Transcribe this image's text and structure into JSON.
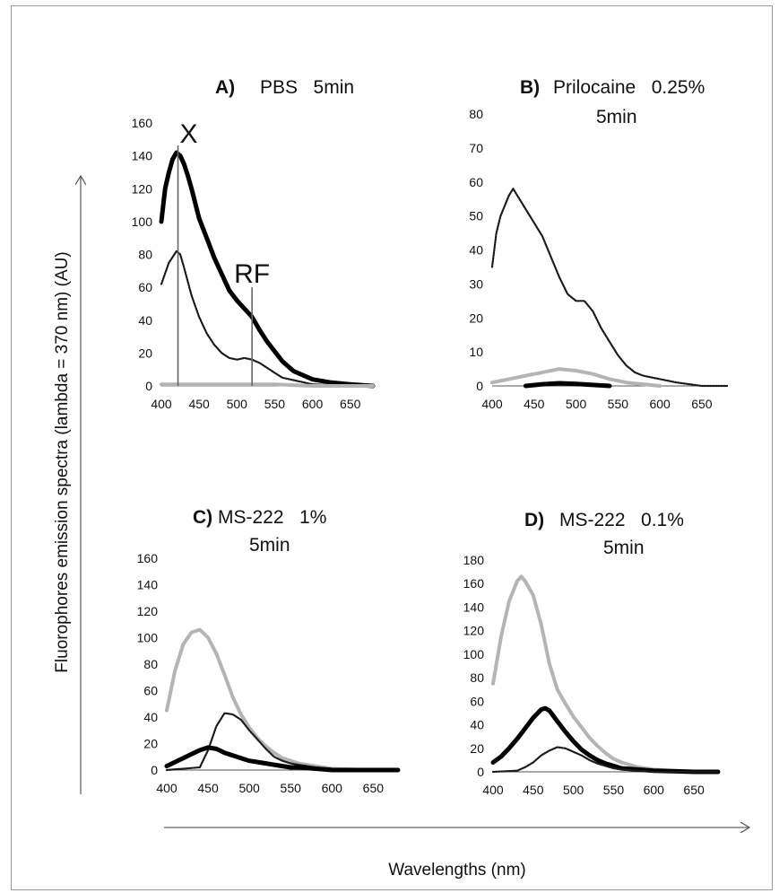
{
  "figure": {
    "ylabel": "Fluorophores  emission  spectra  (lambda = 370 nm)  (AU)",
    "xlabel": "Wavelengths   (nm)",
    "colors": {
      "black_series": "#000000",
      "dotted_series": "#1a1a1a",
      "gray_series": "#b4b4b4"
    }
  },
  "chart_data": [
    {
      "type": "line",
      "panel_label": "A)",
      "title_lines": [
        "PBS   5min"
      ],
      "xlim": [
        400,
        680
      ],
      "ylim": [
        0,
        160
      ],
      "xticks": [
        "400",
        "450",
        "500",
        "550",
        "600",
        "650"
      ],
      "yticks": [
        "0",
        "20",
        "40",
        "60",
        "80",
        "100",
        "120",
        "140",
        "160"
      ],
      "annotations": [
        {
          "text": "X",
          "x": 422
        },
        {
          "text": "RF",
          "x": 520
        }
      ],
      "series": [
        {
          "style": "thick-black",
          "x": [
            400,
            405,
            410,
            415,
            420,
            425,
            430,
            435,
            440,
            450,
            460,
            470,
            480,
            490,
            500,
            510,
            520,
            530,
            540,
            550,
            560,
            575,
            600,
            625,
            650,
            680
          ],
          "y": [
            100,
            120,
            130,
            138,
            142,
            140,
            135,
            128,
            120,
            102,
            90,
            78,
            68,
            58,
            52,
            47,
            42,
            34,
            27,
            21,
            15,
            9,
            4,
            2,
            1,
            0
          ]
        },
        {
          "style": "dotted-black",
          "x": [
            400,
            410,
            420,
            425,
            430,
            440,
            450,
            460,
            470,
            480,
            490,
            500,
            510,
            520,
            530,
            540,
            550,
            560,
            580,
            600,
            650,
            680
          ],
          "y": [
            62,
            75,
            82,
            80,
            72,
            55,
            42,
            32,
            25,
            20,
            17,
            16,
            17,
            16,
            14,
            11,
            8,
            5,
            3,
            1,
            0,
            0
          ]
        },
        {
          "style": "gray",
          "x": [
            400,
            450,
            500,
            550,
            600,
            680
          ],
          "y": [
            1,
            1,
            1,
            1,
            0,
            0
          ]
        }
      ]
    },
    {
      "type": "line",
      "panel_label": "B)",
      "title_lines": [
        "Prilocaine   0.25%",
        "5min"
      ],
      "xlim": [
        400,
        680
      ],
      "ylim": [
        0,
        80
      ],
      "xticks": [
        "400",
        "450",
        "500",
        "550",
        "600",
        "650"
      ],
      "yticks": [
        "0",
        "10",
        "20",
        "30",
        "40",
        "50",
        "60",
        "70",
        "80"
      ],
      "series": [
        {
          "style": "dotted-black",
          "x": [
            400,
            405,
            410,
            420,
            425,
            430,
            440,
            450,
            460,
            470,
            480,
            490,
            500,
            510,
            520,
            530,
            540,
            550,
            560,
            570,
            580,
            600,
            620,
            650,
            680
          ],
          "y": [
            35,
            45,
            50,
            56,
            58,
            56,
            52,
            48,
            44,
            38,
            32,
            27,
            25,
            25,
            22,
            17,
            13,
            9,
            6,
            4,
            3,
            2,
            1,
            0,
            0
          ]
        },
        {
          "style": "gray",
          "x": [
            400,
            420,
            440,
            460,
            480,
            500,
            520,
            540,
            560,
            600
          ],
          "y": [
            1,
            2,
            3,
            4,
            5,
            4.5,
            3.5,
            2,
            1,
            0
          ]
        },
        {
          "style": "thick-black",
          "x": [
            440,
            460,
            480,
            500,
            520,
            540
          ],
          "y": [
            0,
            0.5,
            0.8,
            0.6,
            0.3,
            0
          ]
        }
      ]
    },
    {
      "type": "line",
      "panel_label": "C)",
      "title_lines": [
        "MS-222   1%",
        "5min"
      ],
      "xlim": [
        400,
        680
      ],
      "ylim": [
        0,
        160
      ],
      "xticks": [
        "400",
        "450",
        "500",
        "550",
        "600",
        "650"
      ],
      "yticks": [
        "0",
        "20",
        "40",
        "60",
        "80",
        "100",
        "120",
        "140",
        "160"
      ],
      "series": [
        {
          "style": "gray",
          "x": [
            400,
            410,
            420,
            430,
            440,
            450,
            460,
            470,
            480,
            490,
            500,
            510,
            520,
            530,
            540,
            550,
            560,
            580,
            600,
            650,
            680
          ],
          "y": [
            45,
            75,
            95,
            104,
            106,
            100,
            88,
            72,
            55,
            42,
            32,
            24,
            18,
            13,
            9,
            7,
            5,
            3,
            1,
            0,
            0
          ]
        },
        {
          "style": "dotted-black",
          "x": [
            400,
            440,
            450,
            460,
            470,
            480,
            490,
            500,
            510,
            520,
            530,
            540,
            550,
            560,
            580,
            600,
            650,
            680
          ],
          "y": [
            0,
            2,
            15,
            33,
            43,
            42,
            38,
            30,
            23,
            16,
            10,
            7,
            5,
            4,
            2,
            1,
            0,
            0
          ]
        },
        {
          "style": "thick-black",
          "x": [
            400,
            410,
            420,
            430,
            440,
            450,
            460,
            470,
            480,
            490,
            500,
            510,
            520,
            530,
            540,
            550,
            560,
            580,
            600,
            650,
            680
          ],
          "y": [
            3,
            6,
            9,
            12,
            15,
            17,
            16,
            13,
            11,
            9,
            7,
            6,
            5,
            4,
            3,
            2,
            2,
            1,
            0,
            0,
            0
          ]
        }
      ]
    },
    {
      "type": "line",
      "panel_label": "D)",
      "title_lines": [
        "MS-222   0.1%",
        "5min"
      ],
      "xlim": [
        400,
        680
      ],
      "ylim": [
        0,
        180
      ],
      "xticks": [
        "400",
        "450",
        "500",
        "550",
        "600",
        "650"
      ],
      "yticks": [
        "0",
        "20",
        "40",
        "60",
        "80",
        "100",
        "120",
        "140",
        "160",
        "180"
      ],
      "series": [
        {
          "style": "gray",
          "x": [
            400,
            410,
            420,
            430,
            435,
            440,
            450,
            460,
            470,
            480,
            490,
            500,
            510,
            520,
            530,
            540,
            550,
            560,
            580,
            600,
            650,
            680
          ],
          "y": [
            75,
            115,
            145,
            162,
            166,
            162,
            150,
            125,
            92,
            70,
            58,
            47,
            38,
            29,
            22,
            16,
            11,
            8,
            4,
            2,
            0,
            0
          ]
        },
        {
          "style": "thick-black",
          "x": [
            400,
            410,
            420,
            430,
            440,
            450,
            460,
            465,
            470,
            480,
            490,
            500,
            510,
            520,
            530,
            540,
            550,
            560,
            580,
            600,
            650,
            680
          ],
          "y": [
            8,
            13,
            20,
            28,
            37,
            46,
            53,
            54,
            52,
            43,
            34,
            26,
            19,
            14,
            10,
            7,
            5,
            3,
            2,
            1,
            0,
            0
          ]
        },
        {
          "style": "dotted-black",
          "x": [
            400,
            430,
            440,
            450,
            460,
            470,
            480,
            490,
            500,
            510,
            520,
            530,
            540,
            550,
            560,
            580,
            600,
            650,
            680
          ],
          "y": [
            0,
            1,
            4,
            8,
            14,
            18,
            21,
            20,
            17,
            14,
            10,
            7,
            5,
            3,
            2,
            1,
            0,
            0,
            0
          ]
        }
      ]
    }
  ]
}
